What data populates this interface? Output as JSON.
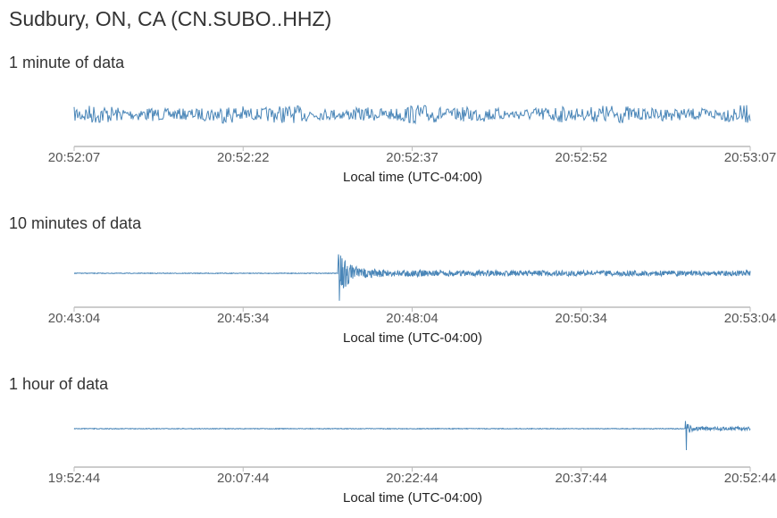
{
  "title": "Sudbury, ON, CA (CN.SUBO..HHZ)",
  "colors": {
    "trace": "#4a86b8",
    "axis": "#bbbbbb"
  },
  "chart_data": [
    {
      "type": "line",
      "title": "1 minute of data",
      "xlabel": "Local time (UTC-04:00)",
      "ticks": [
        "20:52:07",
        "20:52:22",
        "20:52:37",
        "20:52:52",
        "20:53:07"
      ],
      "signal": "continuous background noise",
      "event_time": null
    },
    {
      "type": "line",
      "title": "10 minutes of data",
      "xlabel": "Local time (UTC-04:00)",
      "ticks": [
        "20:43:04",
        "20:45:34",
        "20:48:04",
        "20:50:34",
        "20:53:04"
      ],
      "signal": "flat with sharp spike and decaying coda",
      "event_time": "20:46:58"
    },
    {
      "type": "line",
      "title": "1 hour of data",
      "xlabel": "Local time (UTC-04:00)",
      "ticks": [
        "19:52:44",
        "20:07:44",
        "20:22:44",
        "20:37:44",
        "20:52:44"
      ],
      "signal": "flat with sharp spike",
      "event_time": "20:46:58"
    }
  ]
}
